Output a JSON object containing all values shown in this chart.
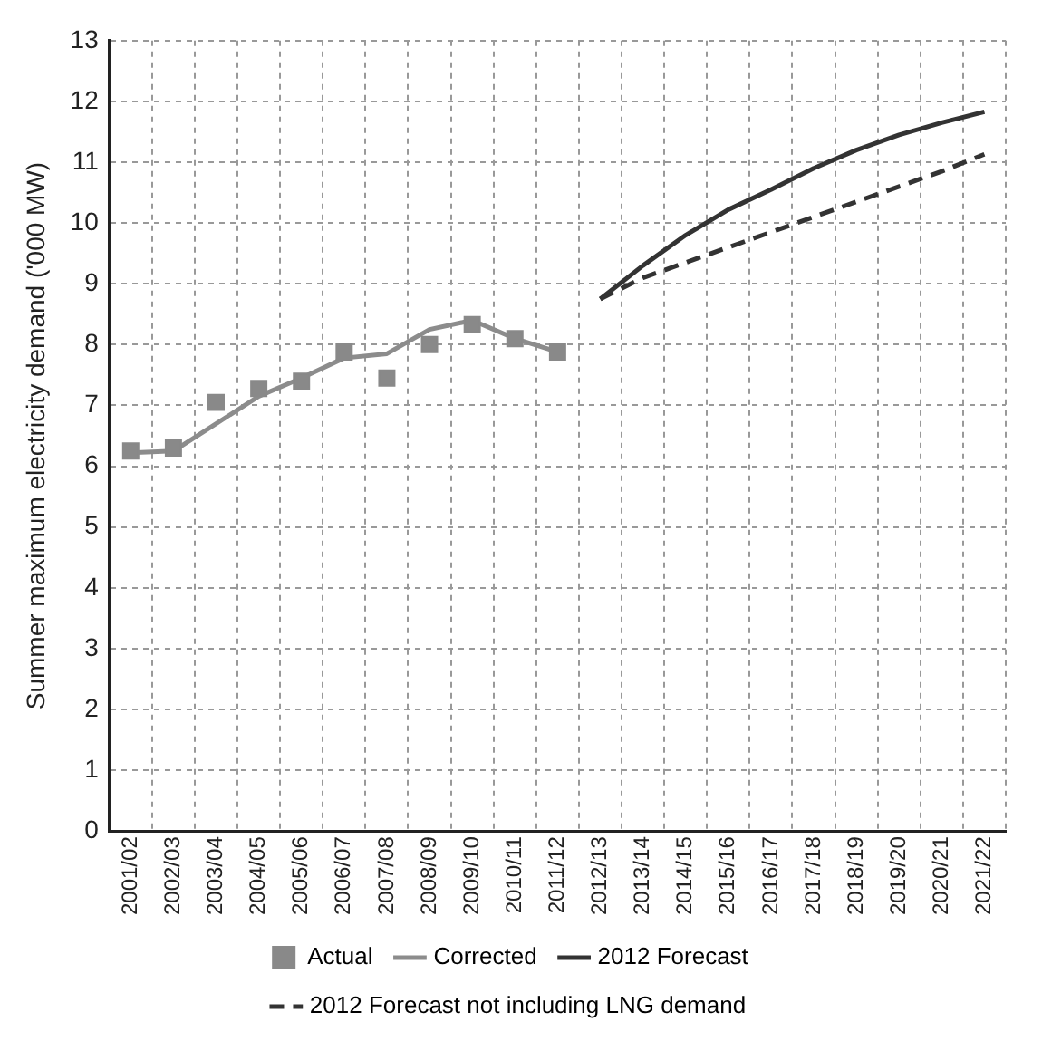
{
  "chart_data": {
    "type": "line",
    "ylabel": "Summer maximum electricity demand ('000 MW)",
    "categories": [
      "2001/02",
      "2002/03",
      "2003/04",
      "2004/05",
      "2005/06",
      "2006/07",
      "2007/08",
      "2008/09",
      "2009/10",
      "2010/11",
      "2011/12",
      "2012/13",
      "2013/14",
      "2014/15",
      "2015/16",
      "2016/17",
      "2017/18",
      "2018/19",
      "2019/20",
      "2020/21",
      "2021/22"
    ],
    "series": [
      {
        "name": "Actual",
        "type": "scatter",
        "marker": "square",
        "color": "#898989",
        "values": [
          6.25,
          6.3,
          7.05,
          7.28,
          7.4,
          7.88,
          7.45,
          8.0,
          8.33,
          8.1,
          7.88,
          null,
          null,
          null,
          null,
          null,
          null,
          null,
          null,
          null,
          null
        ]
      },
      {
        "name": "Corrected",
        "type": "line",
        "marker": "none",
        "line_style": "solid",
        "color": "#8c8c8c",
        "values": [
          6.22,
          6.25,
          6.7,
          7.15,
          7.45,
          7.78,
          7.85,
          8.25,
          8.4,
          8.1,
          7.88,
          null,
          null,
          null,
          null,
          null,
          null,
          null,
          null,
          null,
          null
        ]
      },
      {
        "name": "2012 Forecast",
        "type": "line",
        "marker": "none",
        "line_style": "solid",
        "color": "#333333",
        "values": [
          null,
          null,
          null,
          null,
          null,
          null,
          null,
          null,
          null,
          null,
          null,
          8.75,
          9.3,
          9.8,
          10.22,
          10.55,
          10.9,
          11.2,
          11.45,
          11.65,
          11.83
        ]
      },
      {
        "name": "2012 Forecast not including LNG demand",
        "type": "line",
        "marker": "none",
        "line_style": "dashed",
        "color": "#333333",
        "values": [
          null,
          null,
          null,
          null,
          null,
          null,
          null,
          null,
          null,
          null,
          null,
          8.75,
          9.1,
          9.35,
          9.6,
          9.85,
          10.1,
          10.35,
          10.6,
          10.85,
          11.13
        ]
      }
    ],
    "ylim": [
      0,
      13
    ],
    "yticks": [
      0,
      1,
      2,
      3,
      4,
      5,
      6,
      7,
      8,
      9,
      10,
      11,
      12,
      13
    ],
    "grid": true,
    "legend": "bottom"
  }
}
